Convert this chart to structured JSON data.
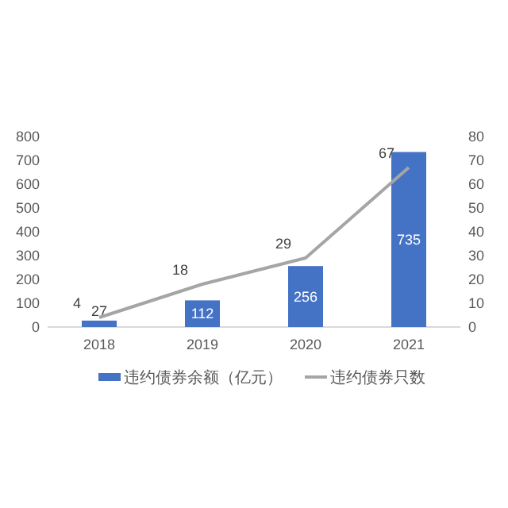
{
  "chart_data": {
    "type": "bar",
    "categories": [
      "2018",
      "2019",
      "2020",
      "2021"
    ],
    "series": [
      {
        "name": "违约债券余额（亿元）",
        "color": "#4472c4",
        "values": [
          27,
          112,
          256,
          735
        ]
      },
      {
        "name": "违约债券只数",
        "type": "line",
        "axis": "y2",
        "color": "#a5a5a5",
        "values": [
          4,
          18,
          29,
          67
        ]
      }
    ],
    "ylim": [
      0,
      800
    ],
    "yticks": [
      0,
      100,
      200,
      300,
      400,
      500,
      600,
      700,
      800
    ],
    "y2lim": [
      0,
      80
    ],
    "y2ticks": [
      0,
      10,
      20,
      30,
      40,
      50,
      60,
      70,
      80
    ],
    "data_labels": true,
    "legend": "bottom",
    "grid": false,
    "marker": "none",
    "line_style": "solid"
  }
}
